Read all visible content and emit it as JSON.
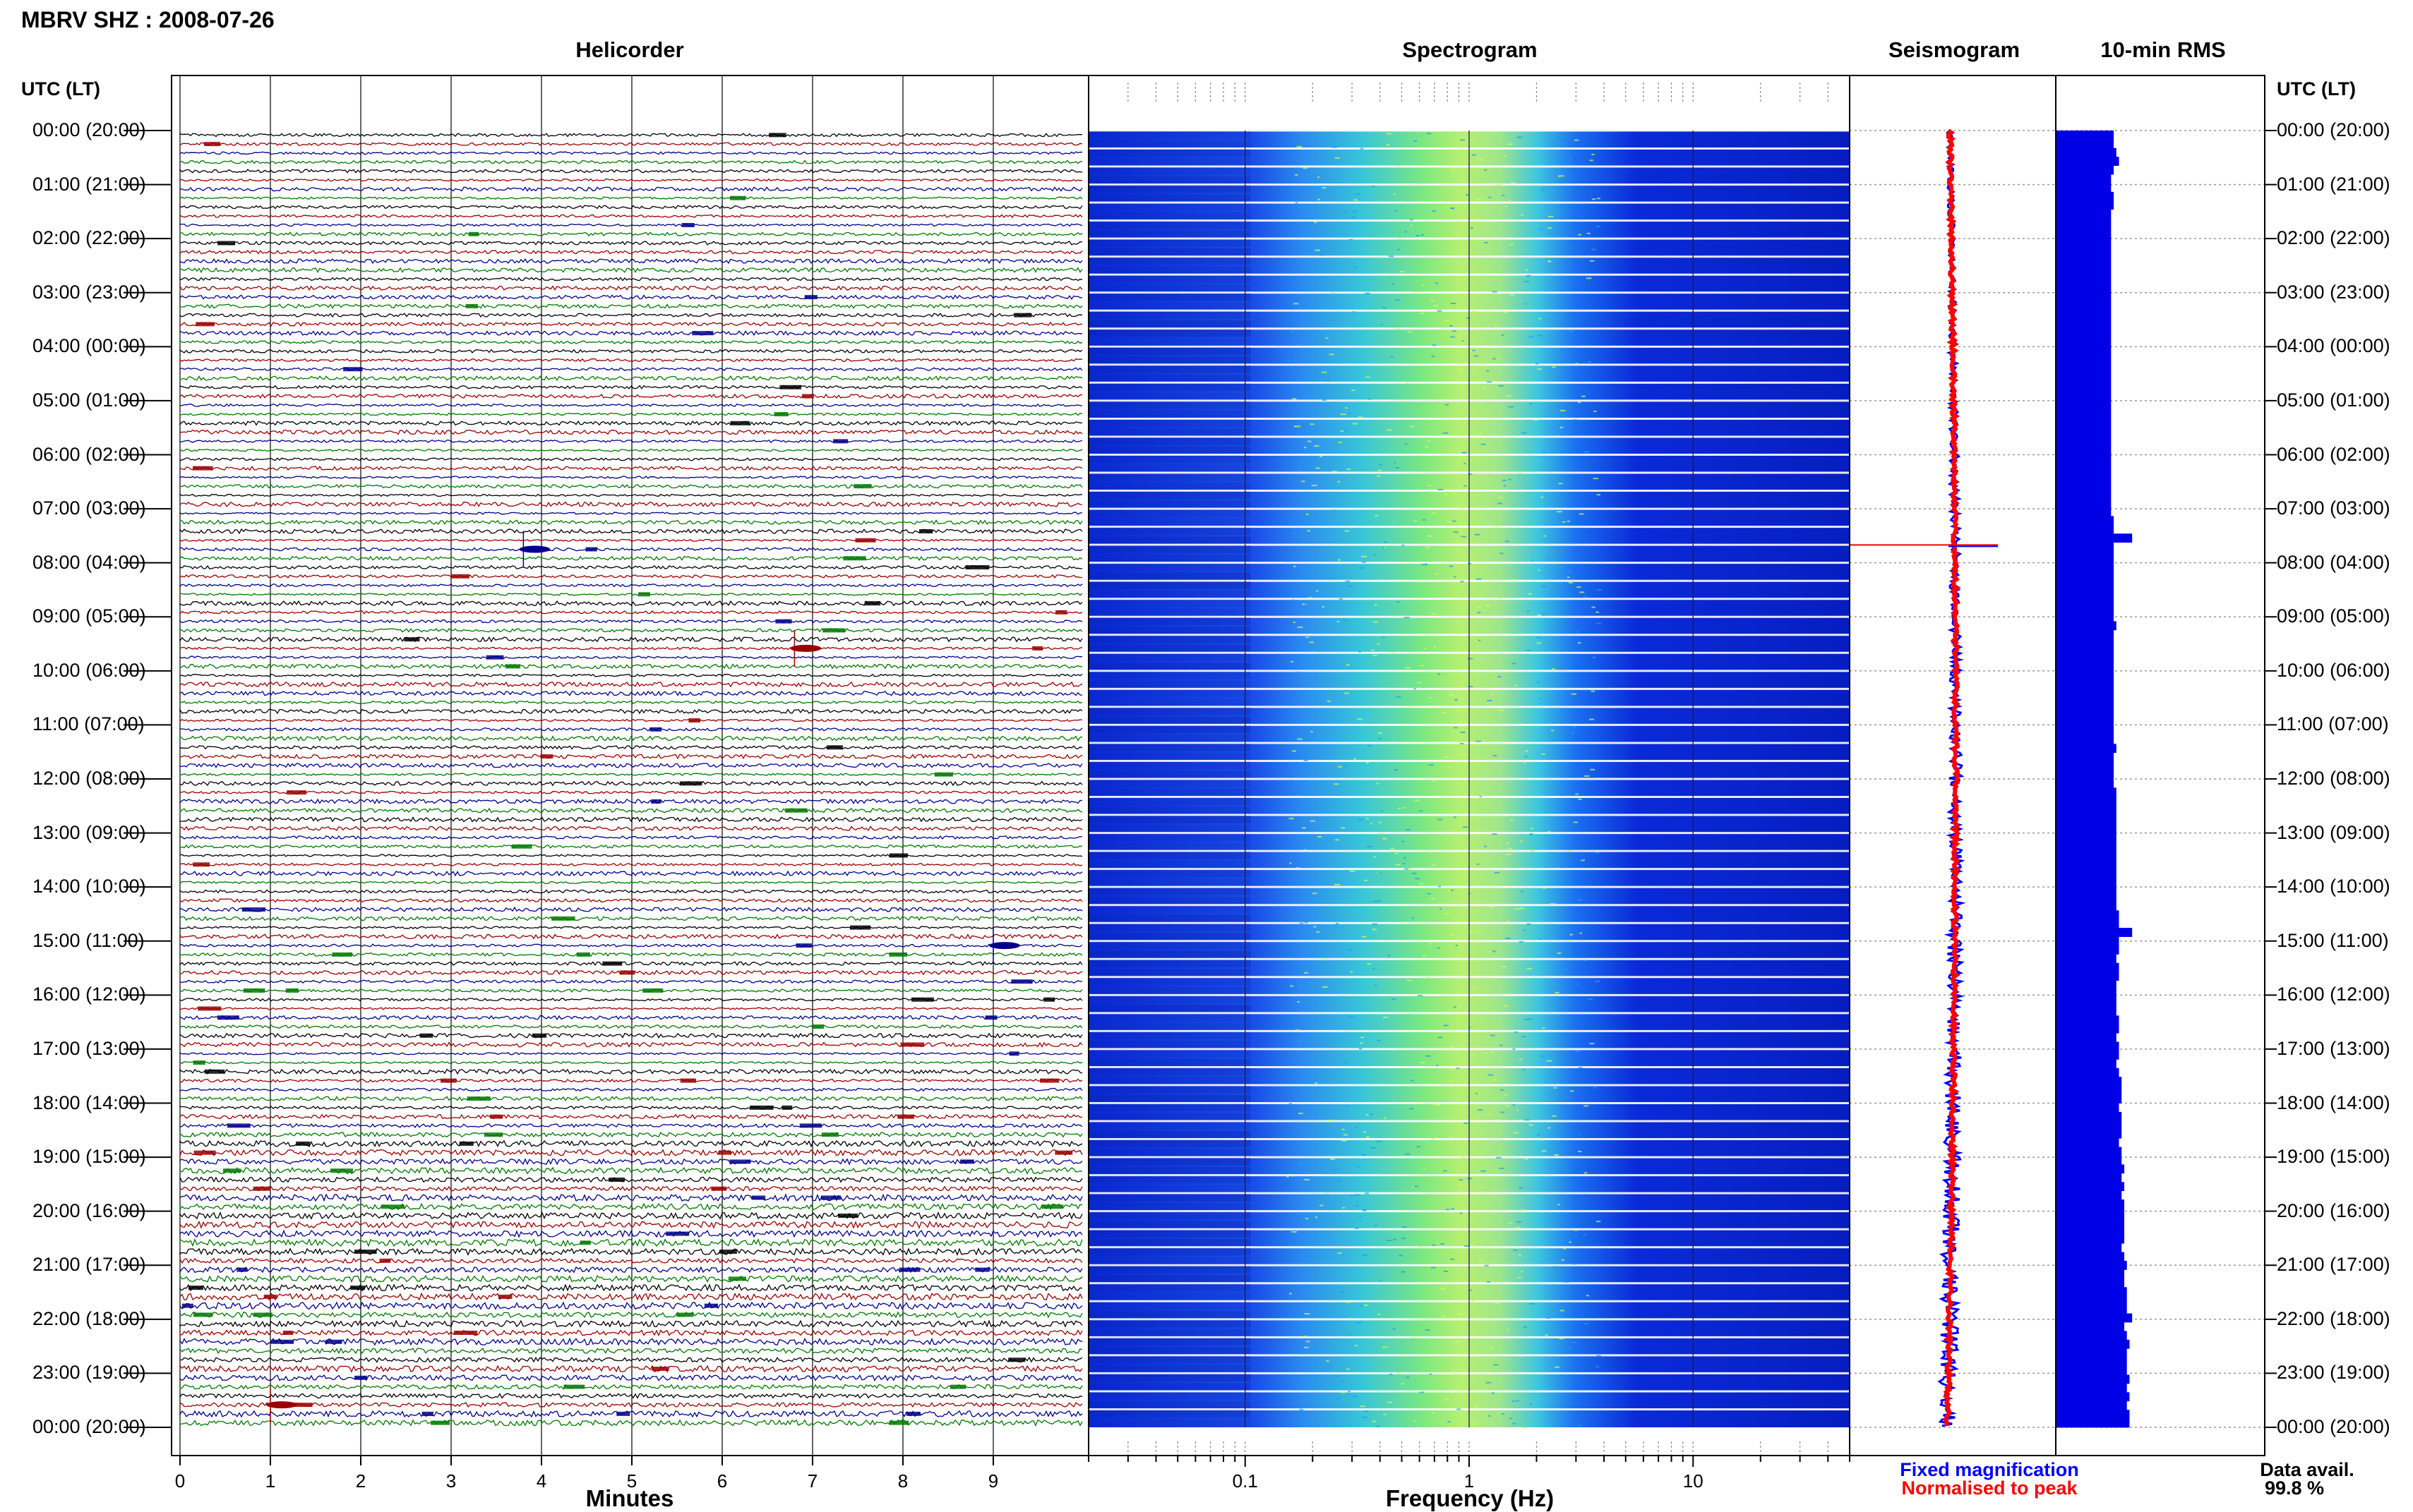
{
  "station_title": "MBRV SHZ : 2008-07-26",
  "panels": {
    "helicorder": "Helicorder",
    "spectrogram": "Spectrogram",
    "seismogram": "Seismogram",
    "rms": "10-min RMS"
  },
  "time_axis_label": "UTC (LT)",
  "time_labels": [
    "00:00 (20:00)",
    "01:00 (21:00)",
    "02:00 (22:00)",
    "03:00 (23:00)",
    "04:00 (00:00)",
    "05:00 (01:00)",
    "06:00 (02:00)",
    "07:00 (03:00)",
    "08:00 (04:00)",
    "09:00 (05:00)",
    "10:00 (06:00)",
    "11:00 (07:00)",
    "12:00 (08:00)",
    "13:00 (09:00)",
    "14:00 (10:00)",
    "15:00 (11:00)",
    "16:00 (12:00)",
    "17:00 (13:00)",
    "18:00 (14:00)",
    "19:00 (15:00)",
    "20:00 (16:00)",
    "21:00 (17:00)",
    "22:00 (18:00)",
    "23:00 (19:00)",
    "00:00 (20:00)"
  ],
  "xlabels": {
    "helicorder": "Minutes",
    "spectrogram": "Frequency (Hz)"
  },
  "minute_ticks": [
    "0",
    "1",
    "2",
    "3",
    "4",
    "5",
    "6",
    "7",
    "8",
    "9"
  ],
  "freq_ticks": [
    "0.1",
    "1",
    "10"
  ],
  "legend": {
    "fixed": "Fixed magnification",
    "normalised": "Normalised to peak"
  },
  "data_avail": {
    "label": "Data avail.",
    "value": "99.8 %"
  },
  "colors": {
    "trace_black": "#000000",
    "trace_red": "#9b0000",
    "trace_blue": "#00008b",
    "trace_green": "#007a00",
    "rms_bar": "#0000e6",
    "fixed": "#0000ff",
    "normalised": "#ff0000"
  },
  "chart_data": [
    {
      "type": "line",
      "name": "Helicorder",
      "xlabel": "Minutes",
      "xlim": [
        0,
        10
      ],
      "ylabel": "UTC (LT)",
      "rows_per_hour": 6,
      "events": [
        {
          "time": "07:40",
          "minute": 3.8
        },
        {
          "time": "09:30",
          "minute": 6.8
        },
        {
          "time": "15:00",
          "minute": 9.0
        },
        {
          "time": "23:30",
          "minute": 1.0
        }
      ]
    },
    {
      "type": "heatmap",
      "name": "Spectrogram",
      "xlabel": "Frequency (Hz)",
      "xscale": "log",
      "xlim": [
        0.02,
        50
      ],
      "peak_band_hz": [
        0.3,
        2.0
      ]
    },
    {
      "type": "bar",
      "name": "10-min RMS",
      "interval_minutes": 10,
      "values": [
        0.44,
        0.44,
        0.46,
        0.48,
        0.44,
        0.42,
        0.42,
        0.44,
        0.44,
        0.42,
        0.42,
        0.42,
        0.42,
        0.42,
        0.42,
        0.42,
        0.42,
        0.42,
        0.42,
        0.42,
        0.42,
        0.42,
        0.42,
        0.42,
        0.42,
        0.42,
        0.42,
        0.42,
        0.42,
        0.42,
        0.42,
        0.42,
        0.42,
        0.42,
        0.42,
        0.42,
        0.42,
        0.42,
        0.42,
        0.42,
        0.42,
        0.42,
        0.42,
        0.42,
        0.44,
        0.44,
        0.58,
        0.44,
        0.44,
        0.44,
        0.44,
        0.44,
        0.44,
        0.44,
        0.44,
        0.44,
        0.46,
        0.44,
        0.44,
        0.44,
        0.44,
        0.44,
        0.44,
        0.44,
        0.44,
        0.44,
        0.44,
        0.44,
        0.44,
        0.44,
        0.46,
        0.44,
        0.44,
        0.44,
        0.44,
        0.46,
        0.46,
        0.46,
        0.46,
        0.46,
        0.46,
        0.46,
        0.46,
        0.46,
        0.46,
        0.46,
        0.46,
        0.46,
        0.46,
        0.48,
        0.48,
        0.58,
        0.48,
        0.48,
        0.46,
        0.48,
        0.48,
        0.46,
        0.46,
        0.46,
        0.46,
        0.48,
        0.48,
        0.46,
        0.48,
        0.48,
        0.46,
        0.48,
        0.5,
        0.5,
        0.5,
        0.48,
        0.5,
        0.5,
        0.5,
        0.48,
        0.5,
        0.5,
        0.52,
        0.5,
        0.52,
        0.5,
        0.52,
        0.52,
        0.52,
        0.52,
        0.52,
        0.5,
        0.52,
        0.54,
        0.52,
        0.52,
        0.54,
        0.54,
        0.54,
        0.58,
        0.52,
        0.54,
        0.56,
        0.54,
        0.54,
        0.54,
        0.56,
        0.54,
        0.56,
        0.54,
        0.56,
        0.56
      ]
    }
  ]
}
